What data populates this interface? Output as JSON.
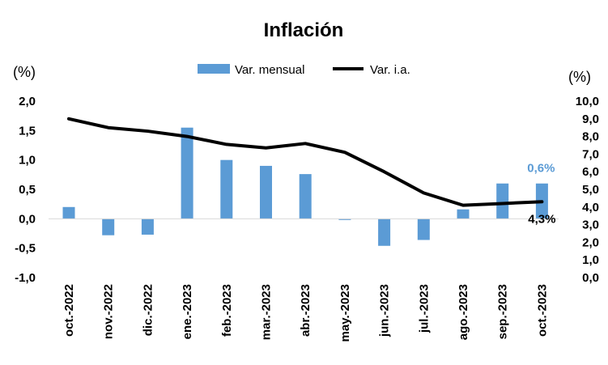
{
  "chart_data": {
    "type": "bar+line",
    "title": "Inflación",
    "left_axis_unit": "(%)",
    "right_axis_unit": "(%)",
    "categories": [
      "oct.-2022",
      "nov.-2022",
      "dic.-2022",
      "ene.-2023",
      "feb.-2023",
      "mar.-2023",
      "abr.-2023",
      "may.-2023",
      "jun.-2023",
      "jul.-2023",
      "ago.-2023",
      "sep.-2023",
      "oct.-2023"
    ],
    "series": [
      {
        "name": "Var. mensual",
        "type": "bar",
        "axis": "left",
        "color": "#5b9bd5",
        "values": [
          0.2,
          -0.28,
          -0.27,
          1.55,
          1.0,
          0.9,
          0.76,
          -0.02,
          -0.46,
          -0.36,
          0.16,
          0.6,
          0.6
        ]
      },
      {
        "name": "Var. i.a.",
        "type": "line",
        "axis": "right",
        "color": "#000000",
        "values": [
          9.0,
          8.5,
          8.3,
          8.0,
          7.55,
          7.35,
          7.6,
          7.1,
          6.0,
          4.8,
          4.1,
          4.2,
          4.3
        ]
      }
    ],
    "left_ylim": [
      -1.0,
      2.0
    ],
    "left_ticks": [
      "-1,0",
      "-0,5",
      "0,0",
      "0,5",
      "1,0",
      "1,5",
      "2,0"
    ],
    "right_ylim": [
      0.0,
      10.0
    ],
    "right_ticks": [
      "0,0",
      "1,0",
      "2,0",
      "3,0",
      "4,0",
      "5,0",
      "6,0",
      "7,0",
      "8,0",
      "9,0",
      "10,0"
    ],
    "data_labels": {
      "bar_last": "0,6%",
      "line_last": "4,3%"
    },
    "legend_position": "top-center",
    "grid": false
  }
}
